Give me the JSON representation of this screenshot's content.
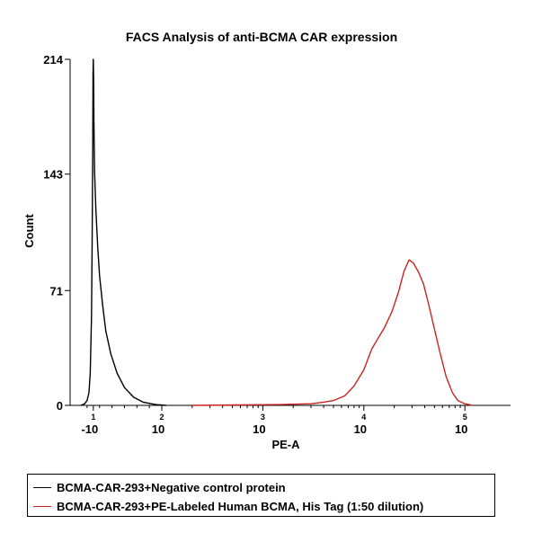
{
  "chart_data": {
    "type": "line",
    "title": "FACS Analysis of anti-BCMA CAR expression",
    "xlabel": "PE-A",
    "ylabel": "Count",
    "x_scale": "biexponential-log",
    "xlim": [
      -30,
      150000
    ],
    "ylim": [
      0,
      214
    ],
    "y_ticks": [
      0,
      71,
      143,
      214
    ],
    "x_ticks": [
      {
        "value": -10,
        "base": "-10",
        "exp": "1"
      },
      {
        "value": 100,
        "base": "10",
        "exp": "2"
      },
      {
        "value": 1000,
        "base": "10",
        "exp": "3"
      },
      {
        "value": 10000,
        "base": "10",
        "exp": "4"
      },
      {
        "value": 100000,
        "base": "10",
        "exp": "5"
      }
    ],
    "grid": false,
    "legend_position": "bottom",
    "series": [
      {
        "name": "BCMA-CAR-293+Negative control protein",
        "color": "#000000",
        "points": [
          [
            -30,
            0
          ],
          [
            -24,
            1
          ],
          [
            -20,
            3
          ],
          [
            -17,
            8
          ],
          [
            -15,
            20
          ],
          [
            -13,
            55
          ],
          [
            -12,
            100
          ],
          [
            -11,
            160
          ],
          [
            -10.5,
            205
          ],
          [
            -10,
            214
          ],
          [
            -9.5,
            200
          ],
          [
            -9,
            175
          ],
          [
            -8,
            145
          ],
          [
            -6,
            122
          ],
          [
            -3,
            98
          ],
          [
            0,
            80
          ],
          [
            5,
            62
          ],
          [
            10,
            46
          ],
          [
            18,
            32
          ],
          [
            28,
            20
          ],
          [
            40,
            11
          ],
          [
            55,
            5
          ],
          [
            70,
            2
          ],
          [
            90,
            0.5
          ],
          [
            110,
            0
          ]
        ]
      },
      {
        "name": "BCMA-CAR-293+PE-Labeled Human BCMA, His Tag (1:50 dilution)",
        "color": "#cc2222",
        "points": [
          [
            200,
            0
          ],
          [
            1500,
            0.5
          ],
          [
            3000,
            1
          ],
          [
            4000,
            2
          ],
          [
            5000,
            3
          ],
          [
            6500,
            6
          ],
          [
            8000,
            12
          ],
          [
            10000,
            22
          ],
          [
            12000,
            35
          ],
          [
            14000,
            42
          ],
          [
            16000,
            48
          ],
          [
            19000,
            58
          ],
          [
            22000,
            70
          ],
          [
            25000,
            83
          ],
          [
            28000,
            90
          ],
          [
            31000,
            88
          ],
          [
            35000,
            82
          ],
          [
            39000,
            75
          ],
          [
            44000,
            62
          ],
          [
            50000,
            47
          ],
          [
            57000,
            32
          ],
          [
            65000,
            18
          ],
          [
            75000,
            8
          ],
          [
            85000,
            3
          ],
          [
            100000,
            1
          ],
          [
            120000,
            0
          ]
        ]
      }
    ]
  }
}
